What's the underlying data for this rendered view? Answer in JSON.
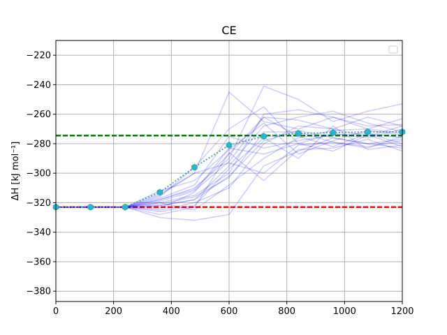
{
  "chart_data": {
    "type": "line",
    "title": "CE",
    "xlabel": "",
    "ylabel": "ΔH [kJ mol⁻¹]",
    "xlim": [
      0,
      1200
    ],
    "ylim": [
      -387,
      -210
    ],
    "xticks": [
      0,
      200,
      400,
      600,
      800,
      1000,
      1200
    ],
    "yticks": [
      -380,
      -360,
      -340,
      -320,
      -300,
      -280,
      -260,
      -240,
      -220
    ],
    "grid": true,
    "legend": {
      "position": "top-right",
      "entries": []
    },
    "reference_lines": [
      {
        "y": -274.5,
        "color": "#008000",
        "style": "dashed"
      },
      {
        "y": -323,
        "color": "#ff0000",
        "style": "dashed"
      }
    ],
    "mean_series": {
      "color": "#17becf",
      "line_color": "#5f9ea0",
      "style": "dotted",
      "marker": "hexagon",
      "x": [
        0,
        120,
        240,
        360,
        480,
        600,
        720,
        840,
        960,
        1080,
        1200
      ],
      "y": [
        -323,
        -323,
        -323,
        -313,
        -296,
        -281,
        -275,
        -273,
        -272.5,
        -272,
        -272
      ]
    },
    "traces": [
      {
        "x": [
          0,
          120,
          240,
          360,
          480,
          600,
          720,
          840,
          960,
          1080,
          1200
        ],
        "y": [
          -323,
          -323,
          -323,
          -315,
          -300,
          -245,
          -265,
          -270,
          -262,
          -268,
          -267
        ]
      },
      {
        "x": [
          0,
          120,
          240,
          360,
          480,
          600,
          720,
          840,
          960,
          1080,
          1200
        ],
        "y": [
          -323,
          -323,
          -323,
          -318,
          -310,
          -290,
          -241,
          -250,
          -265,
          -258,
          -253
        ]
      },
      {
        "x": [
          0,
          120,
          240,
          360,
          480,
          600,
          720,
          840,
          960,
          1080,
          1200
        ],
        "y": [
          -323,
          -323,
          -323,
          -320,
          -315,
          -300,
          -260,
          -257,
          -262,
          -270,
          -263
        ]
      },
      {
        "x": [
          0,
          120,
          240,
          360,
          480,
          600,
          720,
          840,
          960,
          1080,
          1200
        ],
        "y": [
          -323,
          -323,
          -323,
          -322,
          -318,
          -295,
          -268,
          -262,
          -258,
          -266,
          -272
        ]
      },
      {
        "x": [
          0,
          120,
          240,
          360,
          480,
          600,
          720,
          840,
          960,
          1080,
          1200
        ],
        "y": [
          -323,
          -323,
          -323,
          -325,
          -320,
          -310,
          -280,
          -268,
          -270,
          -262,
          -268
        ]
      },
      {
        "x": [
          0,
          120,
          240,
          360,
          480,
          600,
          720,
          840,
          960,
          1080,
          1200
        ],
        "y": [
          -323,
          -323,
          -323,
          -316,
          -296,
          -270,
          -255,
          -280,
          -273,
          -276,
          -270
        ]
      },
      {
        "x": [
          0,
          120,
          240,
          360,
          480,
          600,
          720,
          840,
          960,
          1080,
          1200
        ],
        "y": [
          -323,
          -323,
          -323,
          -312,
          -305,
          -284,
          -266,
          -287,
          -278,
          -271,
          -274
        ]
      },
      {
        "x": [
          0,
          120,
          240,
          360,
          480,
          600,
          720,
          840,
          960,
          1080,
          1200
        ],
        "y": [
          -323,
          -323,
          -323,
          -319,
          -312,
          -292,
          -262,
          -275,
          -282,
          -273,
          -276
        ]
      },
      {
        "x": [
          0,
          120,
          240,
          360,
          480,
          600,
          720,
          840,
          960,
          1080,
          1200
        ],
        "y": [
          -323,
          -323,
          -323,
          -321,
          -316,
          -303,
          -272,
          -272,
          -279,
          -282,
          -278
        ]
      },
      {
        "x": [
          0,
          120,
          240,
          360,
          480,
          600,
          720,
          840,
          960,
          1080,
          1200
        ],
        "y": [
          -323,
          -323,
          -323,
          -326,
          -322,
          -297,
          -276,
          -290,
          -268,
          -284,
          -281
        ]
      },
      {
        "x": [
          0,
          120,
          240,
          360,
          480,
          600,
          720,
          840,
          960,
          1080,
          1200
        ],
        "y": [
          -323,
          -323,
          -323,
          -330,
          -332,
          -328,
          -295,
          -285,
          -276,
          -280,
          -283
        ]
      },
      {
        "x": [
          0,
          120,
          240,
          360,
          480,
          600,
          720,
          840,
          960,
          1080,
          1200
        ],
        "y": [
          -323,
          -323,
          -323,
          -328,
          -323,
          -286,
          -305,
          -284,
          -283,
          -277,
          -285
        ]
      },
      {
        "x": [
          0,
          120,
          240,
          360,
          480,
          600,
          720,
          840,
          960,
          1080,
          1200
        ],
        "y": [
          -323,
          -323,
          -323,
          -317,
          -308,
          -275,
          -283,
          -278,
          -274,
          -273,
          -280
        ]
      },
      {
        "x": [
          0,
          120,
          240,
          360,
          480,
          600,
          720,
          840,
          960,
          1080,
          1200
        ],
        "y": [
          -323,
          -323,
          -323,
          -314,
          -300,
          -293,
          -300,
          -281,
          -279,
          -283,
          -275
        ]
      },
      {
        "x": [
          0,
          120,
          240,
          360,
          480,
          600,
          720,
          840,
          960,
          1080,
          1200
        ],
        "y": [
          -323,
          -323,
          -323,
          -324,
          -313,
          -283,
          -287,
          -280,
          -285,
          -274,
          -282
        ]
      },
      {
        "x": [
          0,
          120,
          240,
          360,
          480,
          600,
          720,
          840,
          960,
          1080,
          1200
        ],
        "y": [
          -323,
          -323,
          -323,
          -320,
          -325,
          -308,
          -290,
          -276,
          -271,
          -270,
          -273
        ]
      },
      {
        "x": [
          0,
          120,
          240,
          360,
          480,
          600,
          720,
          840,
          960,
          1080,
          1200
        ],
        "y": [
          -323,
          -323,
          -323,
          -318,
          -311,
          -287,
          -262,
          -264,
          -270,
          -275,
          -268
        ]
      },
      {
        "x": [
          0,
          120,
          240,
          360,
          480,
          600,
          720,
          840,
          960,
          1080,
          1200
        ],
        "y": [
          -323,
          -323,
          -323,
          -322,
          -318,
          -302,
          -278,
          -271,
          -276,
          -280,
          -277
        ]
      }
    ]
  }
}
